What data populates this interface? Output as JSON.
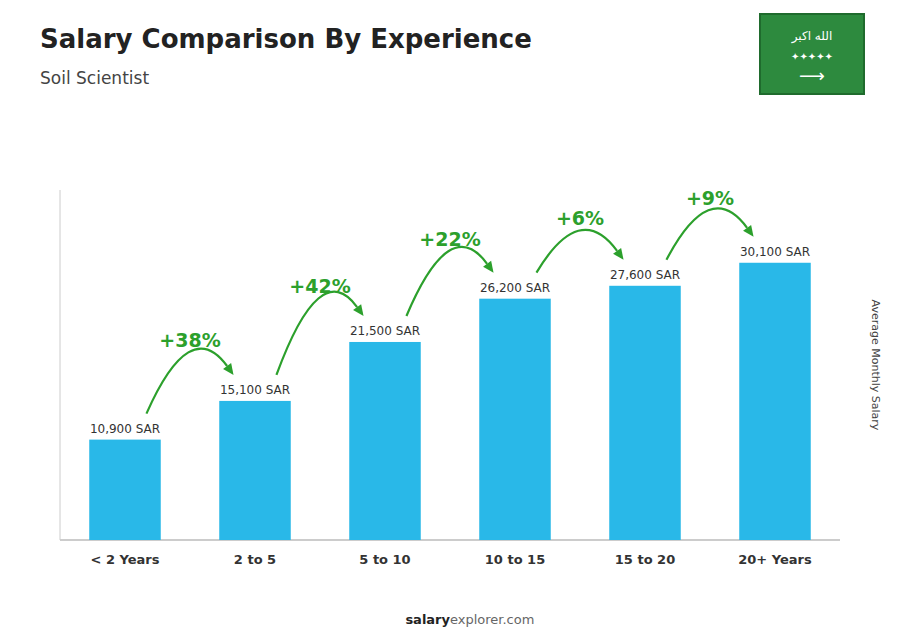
{
  "chart_data": {
    "type": "bar",
    "title": "Salary Comparison By Experience",
    "subtitle": "Soil Scientist",
    "ylabel": "Average Monthly Salary",
    "footer": [
      "salary",
      "explorer.com"
    ],
    "badge_texts": [
      "الله اكبر",
      "✦✦✦✦✦",
      "⟶"
    ],
    "categories": [
      "< 2 Years",
      "2 to 5",
      "5 to 10",
      "10 to 15",
      "15 to 20",
      "20+ Years"
    ],
    "values": [
      10900,
      15100,
      21500,
      26200,
      27600,
      30100
    ],
    "value_labels": [
      "10,900 SAR",
      "15,100 SAR",
      "21,500 SAR",
      "26,200 SAR",
      "27,600 SAR",
      "30,100 SAR"
    ],
    "data_labels": true,
    "color": "#29B8E8",
    "annotations": [
      {
        "text": "+38%",
        "color": "#2ca02c"
      },
      {
        "text": "+42%",
        "color": "#2ca02c"
      },
      {
        "text": "+22%",
        "color": "#2ca02c"
      },
      {
        "text": "+6%",
        "color": "#2ca02c"
      },
      {
        "text": "+9%",
        "color": "#2ca02c"
      }
    ],
    "ylim": [
      0,
      38000
    ],
    "tick_labels": "x",
    "grid": false
  }
}
